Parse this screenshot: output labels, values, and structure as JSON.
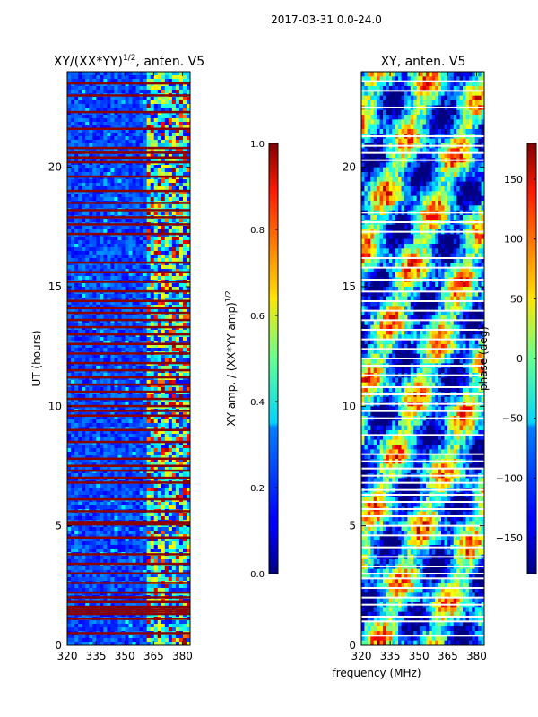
{
  "suptitle": "2017-03-31 0.0-24.0",
  "shared_xlabel": "frequency (MHz)",
  "chart_data": [
    {
      "type": "heatmap",
      "title": "XY/(XX*YY)^1/2, anten. V5",
      "title_main": "XY/(XX*YY)",
      "title_exp": "1/2",
      "title_tail": ", anten. V5",
      "ylabel": "UT (hours)",
      "xlim": [
        320,
        384
      ],
      "ylim": [
        0,
        24
      ],
      "xticks": [
        "320",
        "335",
        "350",
        "365",
        "380"
      ],
      "xtick_values": [
        320,
        335,
        350,
        365,
        380
      ],
      "yticks": [
        "0",
        "5",
        "10",
        "15",
        "20"
      ],
      "ytick_values": [
        0,
        5,
        10,
        15,
        20
      ],
      "colorbar": {
        "label_main": "XY amp. / (XX*YY amp)",
        "label_exp": "1/2",
        "range": [
          0.0,
          1.0
        ],
        "ticks": [
          "0.0",
          "0.2",
          "0.4",
          "0.6",
          "0.8",
          "1.0"
        ],
        "tick_values": [
          0.0,
          0.2,
          0.4,
          0.6,
          0.8,
          1.0
        ]
      },
      "colormap": "jet",
      "flagged_hours": [
        0.5,
        1.1,
        1.3,
        1.4,
        1.5,
        1.6,
        1.8,
        2.0,
        2.2,
        2.6,
        3.0,
        3.4,
        3.8,
        4.5,
        5.05,
        5.15,
        5.6,
        6.1,
        6.8,
        7.0,
        7.3,
        7.5,
        7.8,
        8.5,
        9.0,
        9.6,
        9.8,
        10.0,
        10.3,
        10.6,
        10.9,
        11.2,
        11.5,
        11.8,
        12.2,
        12.6,
        13.0,
        13.3,
        13.6,
        13.9,
        14.1,
        14.4,
        14.8,
        15.2,
        15.6,
        16.0,
        17.2,
        17.6,
        17.9,
        18.2,
        18.5,
        19.0,
        19.6,
        20.2,
        20.4,
        20.6,
        20.8,
        21.6,
        22.3,
        23.0,
        23.5
      ],
      "rfi_band_mhz": [
        360,
        383
      ]
    },
    {
      "type": "heatmap",
      "title": "XY, anten. V5",
      "ylabel": "",
      "xlim": [
        320,
        384
      ],
      "ylim": [
        0,
        24
      ],
      "xticks": [
        "320",
        "335",
        "350",
        "365",
        "380"
      ],
      "xtick_values": [
        320,
        335,
        350,
        365,
        380
      ],
      "yticks": [
        "0",
        "5",
        "10",
        "15",
        "20"
      ],
      "ytick_values": [
        0,
        5,
        10,
        15,
        20
      ],
      "colorbar": {
        "label_main": "phase (deg)",
        "range": [
          -180,
          180
        ],
        "ticks": [
          "−150",
          "−100",
          "−50",
          "0",
          "50",
          "100",
          "150"
        ],
        "tick_values": [
          -150,
          -100,
          -50,
          0,
          50,
          100,
          150
        ]
      },
      "colormap": "jet",
      "flagged_hours": [
        0.4,
        1.0,
        1.2,
        1.7,
        2.0,
        2.4,
        2.8,
        3.0,
        3.3,
        3.7,
        4.1,
        4.6,
        5.0,
        5.4,
        5.7,
        6.0,
        6.3,
        6.5,
        6.8,
        7.1,
        7.4,
        7.7,
        8.0,
        8.8,
        9.5,
        9.8,
        10.1,
        10.5,
        10.8,
        11.3,
        11.7,
        12.0,
        12.4,
        12.8,
        13.2,
        13.6,
        14.0,
        14.4,
        14.8,
        15.3,
        15.8,
        16.2,
        17.3,
        17.7,
        18.1,
        20.3,
        20.6,
        20.9,
        21.3,
        22.5,
        23.2,
        23.6
      ]
    }
  ]
}
